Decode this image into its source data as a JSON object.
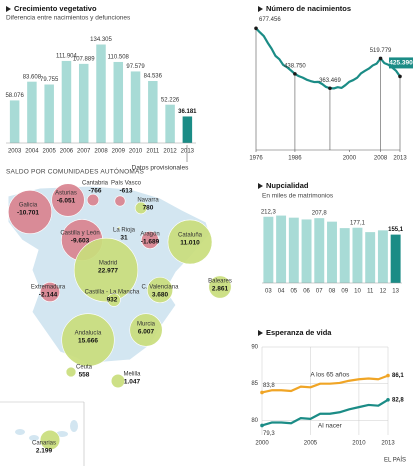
{
  "chart_data": [
    {
      "type": "bar",
      "title": "Crecimiento vegetativo",
      "subtitle": "Diferencia entre nacimientos y defunciones",
      "categories": [
        "2003",
        "2004",
        "2005",
        "2006",
        "2007",
        "2008",
        "2009",
        "2010",
        "2011",
        "2012",
        "2013"
      ],
      "values": [
        58076,
        83608,
        79755,
        111904,
        107889,
        134305,
        110508,
        97579,
        84536,
        52226,
        36181
      ],
      "value_labels": [
        "58.076",
        "83.608",
        "79.755",
        "111.904",
        "107.889",
        "134.305",
        "110.508",
        "97.579",
        "84.536",
        "52.226",
        "36.181"
      ],
      "colors": [
        "#a8dbd6",
        "#a8dbd6",
        "#a8dbd6",
        "#a8dbd6",
        "#a8dbd6",
        "#a8dbd6",
        "#a8dbd6",
        "#a8dbd6",
        "#a8dbd6",
        "#a8dbd6",
        "#1b8c86"
      ],
      "ylim": [
        0,
        150000
      ],
      "note": "Datos provisionales"
    },
    {
      "type": "line",
      "title": "Número de nacimientos",
      "x": [
        1976,
        1977,
        1978,
        1979,
        1980,
        1981,
        1982,
        1983,
        1984,
        1985,
        1986,
        1987,
        1988,
        1989,
        1990,
        1991,
        1992,
        1993,
        1994,
        1995,
        1996,
        1997,
        1998,
        1999,
        2000,
        2001,
        2002,
        2003,
        2004,
        2005,
        2006,
        2007,
        2008,
        2009,
        2010,
        2011,
        2012,
        2013
      ],
      "values": [
        677456,
        656357,
        636892,
        601992,
        571018,
        533008,
        515706,
        485352,
        473281,
        456298,
        438750,
        426782,
        418919,
        408434,
        401425,
        395989,
        396747,
        385786,
        370148,
        363469,
        362626,
        369035,
        365193,
        380130,
        397632,
        406380,
        418846,
        441881,
        454591,
        466371,
        482957,
        492527,
        519779,
        494997,
        486575,
        471999,
        454648,
        425390
      ],
      "value_labels": [
        "677.456",
        null,
        null,
        null,
        null,
        null,
        null,
        null,
        null,
        null,
        "438.750",
        null,
        null,
        null,
        null,
        null,
        null,
        null,
        null,
        "363.469",
        null,
        null,
        null,
        null,
        null,
        null,
        null,
        null,
        null,
        null,
        null,
        null,
        "519.779",
        null,
        null,
        null,
        null,
        "425.390"
      ],
      "color": "#1b8c86",
      "xlim": [
        1976,
        2013
      ],
      "xticks": [
        1976,
        1986,
        2000,
        2008,
        2013
      ],
      "ylim": [
        40000,
        700000
      ]
    },
    {
      "type": "bubble",
      "title": "SALDO POR COMUNIDADES AUTÓNOMAS",
      "negative_color": "#d9838f",
      "positive_color": "#c9dd7c",
      "regions": [
        {
          "name": "Galicia",
          "value": -10701,
          "value_label": "-10.701"
        },
        {
          "name": "Asturias",
          "value": -6051,
          "value_label": "-6.051"
        },
        {
          "name": "Cantabria",
          "value": -766,
          "value_label": "-766"
        },
        {
          "name": "País Vasco",
          "value": -613,
          "value_label": "-613"
        },
        {
          "name": "Navarra",
          "value": 780,
          "value_label": "780"
        },
        {
          "name": "Castilla y León",
          "value": -9603,
          "value_label": "-9.603"
        },
        {
          "name": "La Rioja",
          "value": 31,
          "value_label": "31"
        },
        {
          "name": "Aragón",
          "value": -1689,
          "value_label": "-1.689"
        },
        {
          "name": "Cataluña",
          "value": 11010,
          "value_label": "11.010"
        },
        {
          "name": "Madrid",
          "value": 22977,
          "value_label": "22.977"
        },
        {
          "name": "Extremadura",
          "value": -2144,
          "value_label": "-2.144"
        },
        {
          "name": "Castilla - La Mancha",
          "value": 932,
          "value_label": "932"
        },
        {
          "name": "C. Valenciana",
          "value": 3680,
          "value_label": "3.680"
        },
        {
          "name": "Baleares",
          "value": 2861,
          "value_label": "2.861"
        },
        {
          "name": "Murcia",
          "value": 6007,
          "value_label": "6.007"
        },
        {
          "name": "Andalucía",
          "value": 15666,
          "value_label": "15.666"
        },
        {
          "name": "Ceuta",
          "value": 558,
          "value_label": "558"
        },
        {
          "name": "Melilla",
          "value": 1047,
          "value_label": "1.047"
        },
        {
          "name": "Canarias",
          "value": 2199,
          "value_label": "2.199"
        }
      ]
    },
    {
      "type": "bar",
      "title": "Nupcialidad",
      "subtitle": "En miles de matrimonios",
      "categories": [
        "03",
        "04",
        "05",
        "06",
        "07",
        "08",
        "09",
        "10",
        "11",
        "12",
        "13"
      ],
      "values": [
        212.3,
        216.1,
        209.4,
        203.7,
        207.8,
        196.6,
        175.9,
        177.1,
        163.1,
        168.8,
        155.1
      ],
      "value_labels": [
        "212,3",
        null,
        null,
        null,
        "207,8",
        null,
        null,
        "177,1",
        null,
        null,
        "155,1"
      ],
      "colors": [
        "#a8dbd6",
        "#a8dbd6",
        "#a8dbd6",
        "#a8dbd6",
        "#a8dbd6",
        "#a8dbd6",
        "#a8dbd6",
        "#a8dbd6",
        "#a8dbd6",
        "#a8dbd6",
        "#1b8c86"
      ],
      "ylim": [
        0,
        250
      ]
    },
    {
      "type": "line",
      "title": "Esperanza de vida",
      "x": [
        2000,
        2001,
        2002,
        2003,
        2004,
        2005,
        2006,
        2007,
        2008,
        2009,
        2010,
        2011,
        2012,
        2013
      ],
      "series": [
        {
          "name": "A los 65 años",
          "color": "#f0a526",
          "values": [
            83.8,
            84.1,
            84.1,
            84.0,
            84.6,
            84.5,
            85.0,
            85.0,
            85.1,
            85.4,
            85.6,
            85.7,
            85.6,
            86.1
          ],
          "value_labels": [
            "83,8",
            null,
            null,
            null,
            null,
            null,
            null,
            null,
            null,
            null,
            null,
            null,
            null,
            "86,1"
          ]
        },
        {
          "name": "Al nacer",
          "color": "#1b8c86",
          "values": [
            79.3,
            79.7,
            79.7,
            79.6,
            80.3,
            80.2,
            80.9,
            80.9,
            81.1,
            81.5,
            81.8,
            82.1,
            82.0,
            82.8
          ],
          "value_labels": [
            "79,3",
            null,
            null,
            null,
            null,
            null,
            null,
            null,
            null,
            null,
            null,
            null,
            null,
            "82,8"
          ]
        }
      ],
      "xlim": [
        2000,
        2013
      ],
      "xticks": [
        2000,
        2005,
        2010,
        2013
      ],
      "ylim": [
        78,
        90
      ],
      "yticks": [
        80,
        85,
        90
      ],
      "grid": true
    }
  ],
  "source": "EL PAÍS"
}
